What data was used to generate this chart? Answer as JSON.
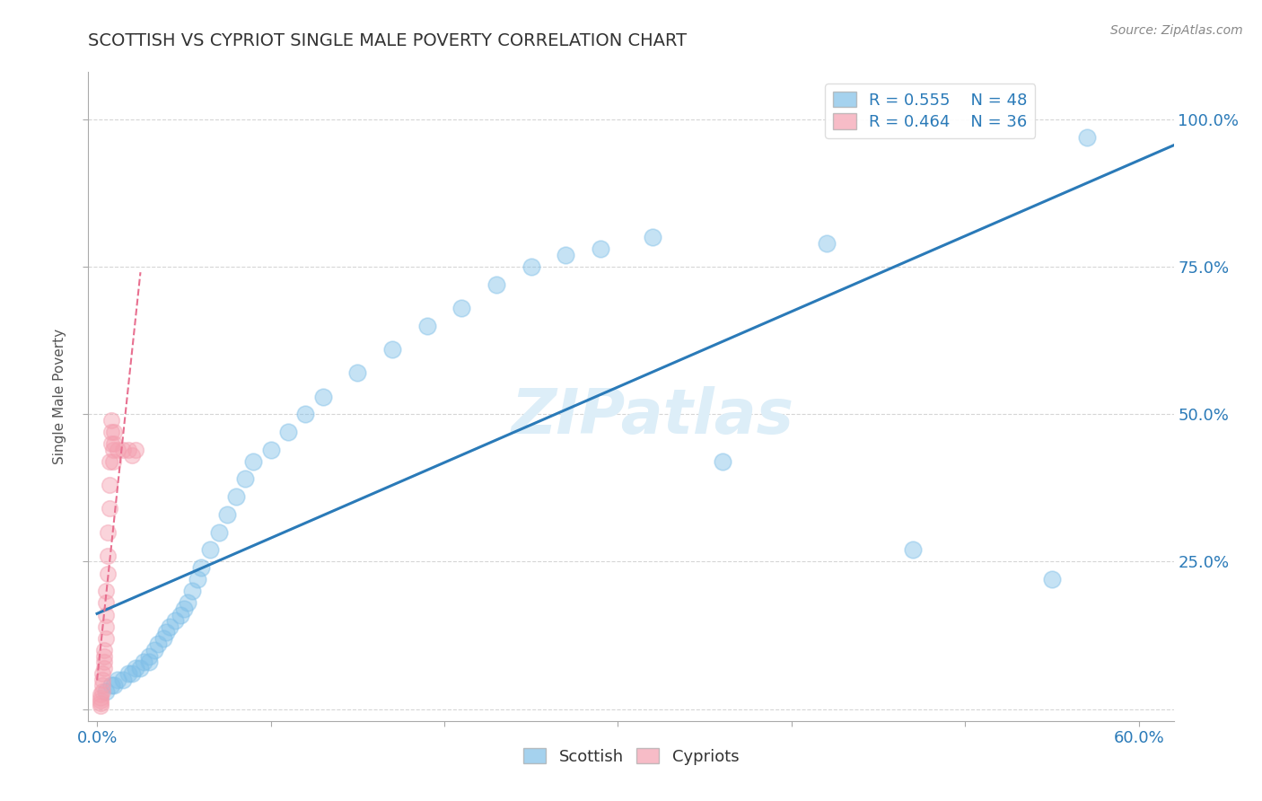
{
  "title": "SCOTTISH VS CYPRIOT SINGLE MALE POVERTY CORRELATION CHART",
  "source": "Source: ZipAtlas.com",
  "ylabel": "Single Male Poverty",
  "xlim": [
    -0.005,
    0.62
  ],
  "ylim": [
    -0.02,
    1.08
  ],
  "xticks": [
    0.0,
    0.1,
    0.2,
    0.3,
    0.4,
    0.5,
    0.6
  ],
  "xticklabels": [
    "0.0%",
    "",
    "",
    "",
    "",
    "",
    "60.0%"
  ],
  "yticks": [
    0.0,
    0.25,
    0.5,
    0.75,
    1.0
  ],
  "yticklabels": [
    "",
    "25.0%",
    "50.0%",
    "75.0%",
    "100.0%"
  ],
  "grid_color": "#cccccc",
  "background_color": "#ffffff",
  "scottish_color": "#7fbfe8",
  "cypriot_color": "#f4a0b0",
  "trendline_scottish_color": "#2a7ab8",
  "trendline_cypriot_color": "#e87090",
  "legend_r_scottish": "R = 0.555",
  "legend_n_scottish": "N = 48",
  "legend_r_cypriot": "R = 0.464",
  "legend_n_cypriot": "N = 36",
  "scottish_x": [
    0.005,
    0.008,
    0.01,
    0.012,
    0.015,
    0.018,
    0.02,
    0.022,
    0.025,
    0.027,
    0.03,
    0.03,
    0.033,
    0.035,
    0.038,
    0.04,
    0.042,
    0.045,
    0.048,
    0.05,
    0.052,
    0.055,
    0.058,
    0.06,
    0.065,
    0.07,
    0.075,
    0.08,
    0.085,
    0.09,
    0.1,
    0.11,
    0.12,
    0.13,
    0.15,
    0.17,
    0.19,
    0.21,
    0.23,
    0.25,
    0.27,
    0.29,
    0.32,
    0.36,
    0.42,
    0.47,
    0.55,
    0.57
  ],
  "scottish_y": [
    0.03,
    0.04,
    0.04,
    0.05,
    0.05,
    0.06,
    0.06,
    0.07,
    0.07,
    0.08,
    0.08,
    0.09,
    0.1,
    0.11,
    0.12,
    0.13,
    0.14,
    0.15,
    0.16,
    0.17,
    0.18,
    0.2,
    0.22,
    0.24,
    0.27,
    0.3,
    0.33,
    0.36,
    0.39,
    0.42,
    0.44,
    0.47,
    0.5,
    0.53,
    0.57,
    0.61,
    0.65,
    0.68,
    0.72,
    0.75,
    0.77,
    0.78,
    0.8,
    0.42,
    0.79,
    0.27,
    0.22,
    0.97
  ],
  "cypriot_x": [
    0.002,
    0.002,
    0.002,
    0.002,
    0.002,
    0.003,
    0.003,
    0.003,
    0.003,
    0.004,
    0.004,
    0.004,
    0.004,
    0.005,
    0.005,
    0.005,
    0.005,
    0.005,
    0.006,
    0.006,
    0.006,
    0.007,
    0.007,
    0.007,
    0.008,
    0.008,
    0.008,
    0.009,
    0.009,
    0.01,
    0.01,
    0.012,
    0.015,
    0.018,
    0.02,
    0.022
  ],
  "cypriot_y": [
    0.005,
    0.01,
    0.015,
    0.02,
    0.025,
    0.03,
    0.04,
    0.05,
    0.06,
    0.07,
    0.08,
    0.09,
    0.1,
    0.12,
    0.14,
    0.16,
    0.18,
    0.2,
    0.23,
    0.26,
    0.3,
    0.34,
    0.38,
    0.42,
    0.45,
    0.47,
    0.49,
    0.42,
    0.44,
    0.45,
    0.47,
    0.44,
    0.44,
    0.44,
    0.43,
    0.44
  ]
}
